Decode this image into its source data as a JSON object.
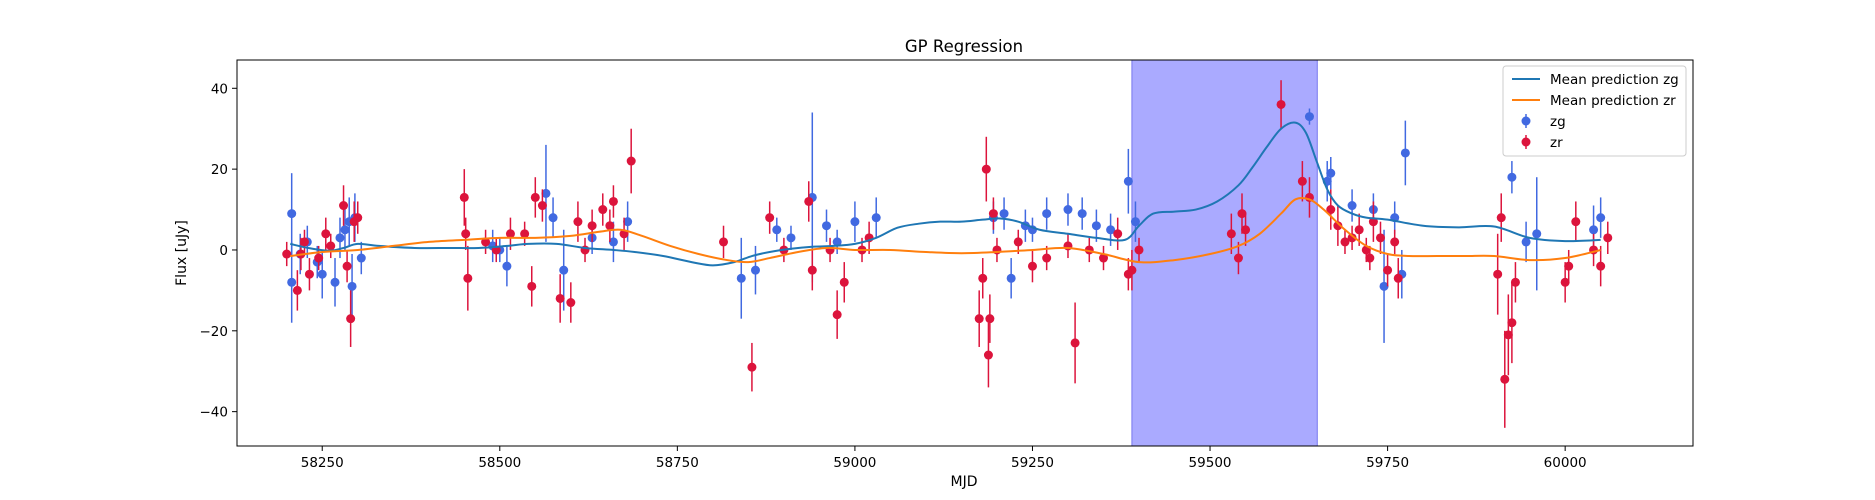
{
  "chart_data": {
    "type": "scatter",
    "title": "GP Regression",
    "xlabel": "MJD",
    "ylabel": "Flux [uJy]",
    "xlim": [
      58130,
      60180
    ],
    "ylim": [
      -48.5,
      47
    ],
    "xticks": [
      58250,
      58500,
      58750,
      59000,
      59250,
      59500,
      59750,
      60000
    ],
    "yticks": [
      -40,
      -20,
      0,
      20,
      40
    ],
    "grid": false,
    "legend_position": "top-right",
    "shaded_region": {
      "x": [
        59390,
        59651
      ],
      "color": "#aaaaff"
    },
    "series": [
      {
        "name": "Mean prediction zg",
        "kind": "line",
        "color": "#1f77b4",
        "x": [
          58205,
          58230,
          58260,
          58280,
          58300,
          58330,
          58380,
          58430,
          58470,
          58510,
          58540,
          58580,
          58620,
          58660,
          58690,
          58730,
          58770,
          58800,
          58830,
          58855,
          58880,
          58910,
          58940,
          58970,
          59000,
          59030,
          59060,
          59090,
          59120,
          59150,
          59180,
          59205,
          59230,
          59260,
          59300,
          59340,
          59380,
          59400,
          59420,
          59450,
          59480,
          59510,
          59540,
          59560,
          59580,
          59600,
          59620,
          59635,
          59650,
          59665,
          59680,
          59700,
          59720,
          59750,
          59800,
          59850,
          59900,
          59950,
          60000,
          60050
        ],
        "y": [
          1.5,
          0.5,
          -0.2,
          0.5,
          1.5,
          1.0,
          0.5,
          0.5,
          0.5,
          1.0,
          1.5,
          1.5,
          0.5,
          0,
          -0.5,
          -1.5,
          -3,
          -3.8,
          -3,
          -1.5,
          -0.5,
          0.3,
          0.8,
          1.0,
          1.5,
          3.0,
          5.5,
          6.5,
          7.0,
          7.0,
          7.5,
          7.8,
          7.0,
          5.0,
          4.0,
          3.0,
          2.5,
          6.0,
          9.0,
          9.5,
          10.0,
          12.0,
          16.0,
          20.5,
          25.5,
          30.0,
          31.5,
          29.0,
          22.0,
          15.0,
          11.0,
          9.0,
          8.0,
          7.5,
          6.0,
          5.6,
          5.8,
          3.0,
          2.2,
          2.5
        ]
      },
      {
        "name": "Mean prediction zr",
        "kind": "line",
        "color": "#ff7f0e",
        "x": [
          58205,
          58250,
          58300,
          58350,
          58400,
          58450,
          58500,
          58550,
          58600,
          58640,
          58670,
          58700,
          58740,
          58780,
          58820,
          58850,
          58880,
          58920,
          58960,
          59000,
          59050,
          59100,
          59150,
          59200,
          59250,
          59300,
          59350,
          59400,
          59450,
          59500,
          59540,
          59570,
          59600,
          59620,
          59640,
          59660,
          59690,
          59720,
          59750,
          59780,
          59820,
          59860,
          59900,
          59950,
          60000,
          60050
        ],
        "y": [
          -1.5,
          -0.5,
          0,
          1.0,
          2.0,
          2.5,
          3.0,
          3.0,
          3.5,
          4.5,
          5.0,
          3.5,
          1.0,
          -1.0,
          -2.5,
          -3.0,
          -2.0,
          -0.5,
          0.5,
          0,
          0,
          -0.5,
          -0.8,
          -0.5,
          0,
          0.5,
          -1.0,
          -3.0,
          -2.5,
          -1.0,
          1.0,
          4.0,
          9.0,
          12.5,
          12.5,
          10.0,
          5.0,
          1.0,
          -1.0,
          -1.5,
          -1.5,
          -1.5,
          -1.5,
          -2.5,
          -2.0,
          0
        ]
      },
      {
        "name": "zg",
        "kind": "errorbar",
        "color": "#4169e1",
        "points": [
          [
            58207,
            9,
            10
          ],
          [
            58207,
            -8,
            10
          ],
          [
            58219,
            -1,
            5
          ],
          [
            58229,
            2,
            4
          ],
          [
            58243,
            -3,
            4
          ],
          [
            58250,
            -6,
            6
          ],
          [
            58268,
            -8,
            6
          ],
          [
            58275,
            3,
            5
          ],
          [
            58282,
            5,
            5
          ],
          [
            58288,
            7,
            6
          ],
          [
            58292,
            -9,
            8
          ],
          [
            58296,
            8,
            6
          ],
          [
            58305,
            -2,
            4
          ],
          [
            58490,
            1,
            4
          ],
          [
            58500,
            0,
            3
          ],
          [
            58510,
            -4,
            5
          ],
          [
            58565,
            14,
            12
          ],
          [
            58575,
            8,
            5
          ],
          [
            58590,
            -5,
            10
          ],
          [
            58630,
            3,
            4
          ],
          [
            58660,
            2,
            5
          ],
          [
            58680,
            7,
            5
          ],
          [
            58840,
            -7,
            10
          ],
          [
            58860,
            -5,
            6
          ],
          [
            58890,
            5,
            3
          ],
          [
            58910,
            3,
            3
          ],
          [
            58940,
            13,
            21
          ],
          [
            58960,
            6,
            4
          ],
          [
            58975,
            2,
            3
          ],
          [
            59000,
            7,
            5
          ],
          [
            59030,
            8,
            5
          ],
          [
            59195,
            8,
            4
          ],
          [
            59210,
            9,
            4
          ],
          [
            59220,
            -7,
            5
          ],
          [
            59240,
            6,
            4
          ],
          [
            59250,
            5,
            3
          ],
          [
            59270,
            9,
            4
          ],
          [
            59300,
            10,
            4
          ],
          [
            59320,
            9,
            4
          ],
          [
            59340,
            6,
            4
          ],
          [
            59360,
            5,
            4
          ],
          [
            59385,
            17,
            8
          ],
          [
            59395,
            7,
            5
          ],
          [
            59640,
            33,
            2
          ],
          [
            59665,
            17,
            5
          ],
          [
            59670,
            19,
            4
          ],
          [
            59700,
            11,
            4
          ],
          [
            59730,
            10,
            4
          ],
          [
            59745,
            -9,
            14
          ],
          [
            59760,
            8,
            4
          ],
          [
            59770,
            -6,
            6
          ],
          [
            59775,
            24,
            8
          ],
          [
            59925,
            18,
            4
          ],
          [
            59945,
            2,
            5
          ],
          [
            59960,
            4,
            14
          ],
          [
            60040,
            5,
            6
          ],
          [
            60050,
            8,
            5
          ]
        ]
      },
      {
        "name": "zr",
        "kind": "errorbar",
        "color": "#dc143c",
        "points": [
          [
            58200,
            -1,
            3
          ],
          [
            58215,
            -10,
            5
          ],
          [
            58220,
            -1,
            4
          ],
          [
            58225,
            2,
            3
          ],
          [
            58232,
            -6,
            4
          ],
          [
            58245,
            -2,
            3
          ],
          [
            58255,
            4,
            4
          ],
          [
            58262,
            1,
            3
          ],
          [
            58280,
            11,
            5
          ],
          [
            58285,
            -4,
            4
          ],
          [
            58290,
            -17,
            7
          ],
          [
            58295,
            7,
            5
          ],
          [
            58300,
            8,
            4
          ],
          [
            58450,
            13,
            7
          ],
          [
            58452,
            4,
            4
          ],
          [
            58455,
            -7,
            8
          ],
          [
            58480,
            2,
            3
          ],
          [
            58495,
            0,
            3
          ],
          [
            58515,
            4,
            4
          ],
          [
            58535,
            4,
            3
          ],
          [
            58545,
            -9,
            5
          ],
          [
            58550,
            13,
            5
          ],
          [
            58560,
            11,
            4
          ],
          [
            58585,
            -12,
            6
          ],
          [
            58600,
            -13,
            5
          ],
          [
            58610,
            7,
            5
          ],
          [
            58620,
            0,
            3
          ],
          [
            58630,
            6,
            4
          ],
          [
            58645,
            10,
            4
          ],
          [
            58655,
            6,
            4
          ],
          [
            58660,
            12,
            4
          ],
          [
            58675,
            4,
            4
          ],
          [
            58685,
            22,
            8
          ],
          [
            58815,
            2,
            4
          ],
          [
            58855,
            -29,
            6
          ],
          [
            58880,
            8,
            4
          ],
          [
            58900,
            0,
            3
          ],
          [
            58935,
            12,
            5
          ],
          [
            58940,
            -5,
            5
          ],
          [
            58965,
            0,
            3
          ],
          [
            58975,
            -16,
            6
          ],
          [
            58985,
            -8,
            5
          ],
          [
            59010,
            0,
            3
          ],
          [
            59020,
            3,
            4
          ],
          [
            59175,
            -17,
            7
          ],
          [
            59180,
            -7,
            5
          ],
          [
            59185,
            20,
            8
          ],
          [
            59188,
            -26,
            8
          ],
          [
            59190,
            -17,
            6
          ],
          [
            59195,
            9,
            4
          ],
          [
            59200,
            0,
            3
          ],
          [
            59230,
            2,
            3
          ],
          [
            59250,
            -4,
            4
          ],
          [
            59270,
            -2,
            3
          ],
          [
            59300,
            1,
            3
          ],
          [
            59310,
            -23,
            10
          ],
          [
            59330,
            0,
            3
          ],
          [
            59350,
            -2,
            3
          ],
          [
            59370,
            4,
            4
          ],
          [
            59385,
            -6,
            4
          ],
          [
            59390,
            -5,
            5
          ],
          [
            59400,
            0,
            3
          ],
          [
            59530,
            4,
            5
          ],
          [
            59540,
            -2,
            4
          ],
          [
            59545,
            9,
            5
          ],
          [
            59550,
            5,
            4
          ],
          [
            59600,
            36,
            6
          ],
          [
            59630,
            17,
            5
          ],
          [
            59640,
            13,
            5
          ],
          [
            59670,
            10,
            5
          ],
          [
            59680,
            6,
            5
          ],
          [
            59690,
            2,
            3
          ],
          [
            59700,
            3,
            3
          ],
          [
            59710,
            5,
            4
          ],
          [
            59720,
            0,
            3
          ],
          [
            59725,
            -2,
            3
          ],
          [
            59730,
            7,
            5
          ],
          [
            59740,
            3,
            4
          ],
          [
            59750,
            -5,
            4
          ],
          [
            59760,
            2,
            3
          ],
          [
            59765,
            -7,
            5
          ],
          [
            59905,
            -6,
            10
          ],
          [
            59910,
            8,
            6
          ],
          [
            59915,
            -32,
            12
          ],
          [
            59920,
            -21,
            10
          ],
          [
            59925,
            -18,
            10
          ],
          [
            59930,
            -8,
            5
          ],
          [
            60000,
            -8,
            5
          ],
          [
            60005,
            -4,
            4
          ],
          [
            60015,
            7,
            5
          ],
          [
            60040,
            0,
            4
          ],
          [
            60050,
            -4,
            5
          ],
          [
            60060,
            3,
            4
          ]
        ]
      }
    ]
  }
}
